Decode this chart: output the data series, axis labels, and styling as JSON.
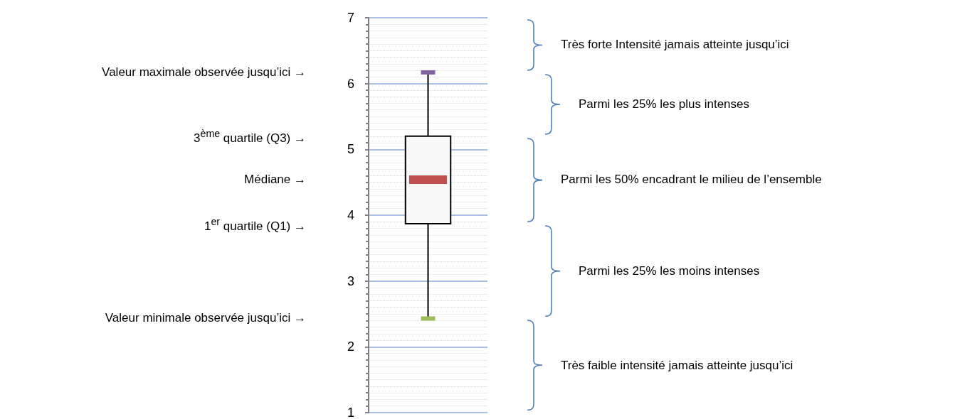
{
  "chart_data": {
    "type": "box",
    "categories": [
      null
    ],
    "boxes": [
      {
        "low": 2.43,
        "q1": 3.87,
        "median": 4.54,
        "q3": 5.2,
        "high": 6.17
      }
    ],
    "color": "#000000",
    "ylim": [
      1,
      7
    ],
    "yticks": [
      1,
      2,
      3,
      4,
      5,
      6,
      7
    ],
    "grid": "y",
    "tick_labels": "y",
    "annotations": [
      "Valeur maximale observée jusqu’ici →",
      "3$^{ème}$ quartile (Q3) →",
      "Médiane →",
      "1$^{er}$ quartile (Q1) →",
      "Valeur minimale observée jusqu’ici →",
      "Très forte Intensité jamais atteinte jusqu’ici",
      "Parmi les 25% les plus intenses",
      "Parmi les 50% encadrant le milieu de l’ensemble",
      "Parmi les 25% les moins intenses",
      "Très faible intensité jamais atteinte jusqu’ici"
    ]
  }
}
